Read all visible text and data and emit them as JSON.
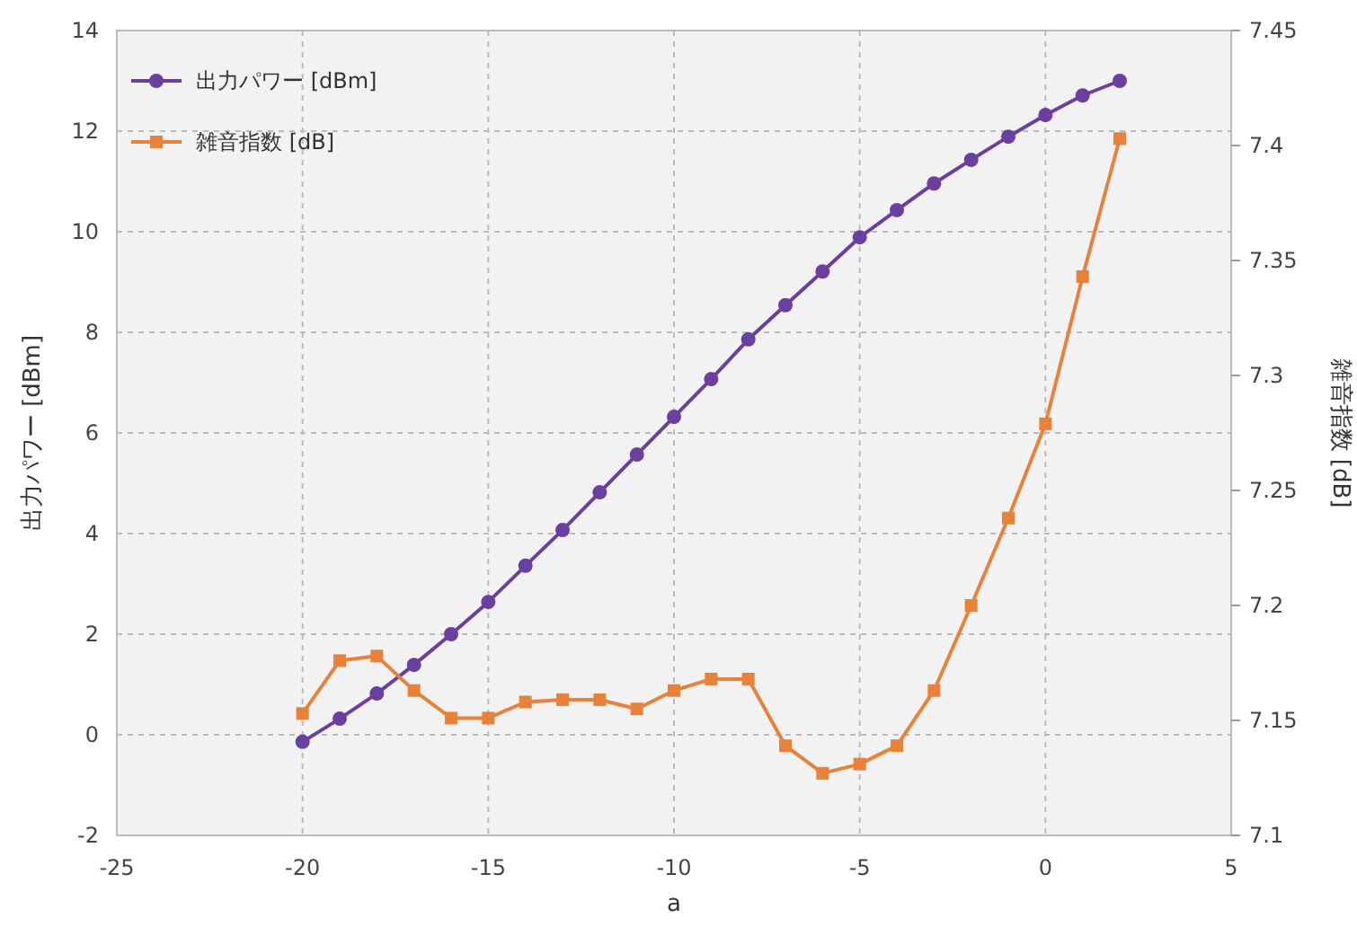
{
  "chart_data": {
    "type": "line",
    "xlabel": "a",
    "ylabel": "出力パワー [dBm]",
    "y2label": "雑音指数 [dB]",
    "x": [
      -20,
      -19,
      -18,
      -17,
      -16,
      -15,
      -14,
      -13,
      -12,
      -11,
      -10,
      -9,
      -8,
      -7,
      -6,
      -5,
      -4,
      -3,
      -2,
      -1,
      0,
      1,
      2
    ],
    "xlim": [
      -25,
      5
    ],
    "xticks": [
      -25,
      -20,
      -15,
      -10,
      -5,
      0,
      5
    ],
    "ylim": [
      -2,
      14
    ],
    "yticks": [
      -2,
      0,
      2,
      4,
      6,
      8,
      10,
      12,
      14
    ],
    "y2lim": [
      7.1,
      7.45
    ],
    "y2ticks": [
      7.1,
      7.15,
      7.2,
      7.25,
      7.3,
      7.35,
      7.4,
      7.45
    ],
    "grid": true,
    "legend": "top left",
    "series": [
      {
        "name": "出力パワー [dBm]",
        "color": "#6b3fa0",
        "marker": "circle",
        "values": [
          -0.14,
          0.32,
          0.82,
          1.39,
          2.0,
          2.64,
          3.36,
          4.07,
          4.82,
          5.57,
          6.32,
          7.07,
          7.86,
          8.54,
          9.21,
          9.89,
          10.43,
          10.96,
          11.43,
          11.89,
          12.32,
          12.71,
          13.0
        ]
      },
      {
        "name": "雑音指数 [dB]",
        "color": "#e8823a",
        "marker": "square",
        "axis": "y2",
        "values": [
          7.153,
          7.176,
          7.178,
          7.163,
          7.151,
          7.151,
          7.158,
          7.159,
          7.159,
          7.155,
          7.163,
          7.168,
          7.168,
          7.139,
          7.127,
          7.131,
          7.139,
          7.163,
          7.2,
          7.238,
          7.279,
          7.343,
          7.403
        ]
      }
    ]
  }
}
